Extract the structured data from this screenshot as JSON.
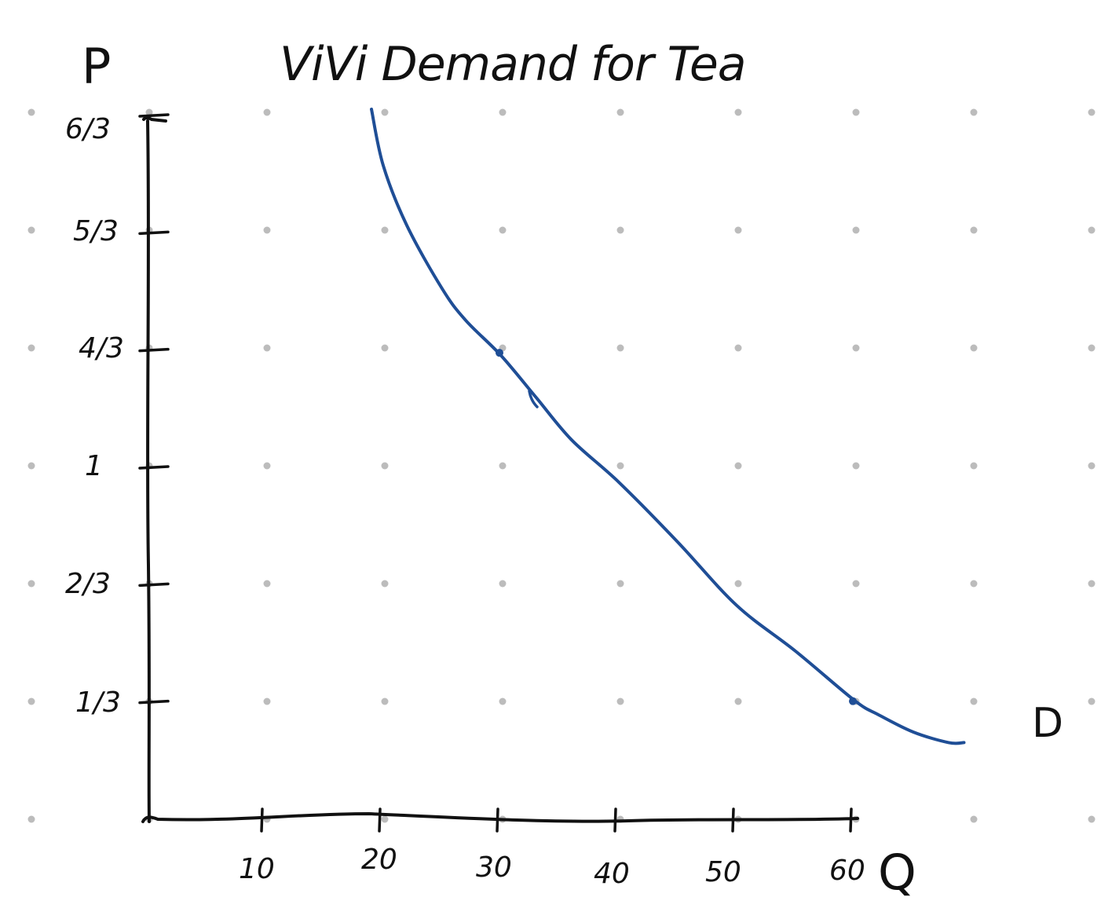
{
  "chart_data": {
    "type": "line",
    "title": "ViVi Demand for Tea",
    "xlabel": "Q",
    "ylabel": "P",
    "x_ticks": [
      "10",
      "20",
      "30",
      "40",
      "50",
      "60"
    ],
    "y_ticks": [
      "1/3",
      "2/3",
      "1",
      "4/3",
      "5/3",
      "6/3"
    ],
    "xlim": [
      0,
      72
    ],
    "ylim": [
      0,
      2
    ],
    "grid": "dot grid",
    "series": [
      {
        "name": "D",
        "color": "#1f4e96",
        "x": [
          19,
          20,
          22,
          25,
          27,
          30,
          33,
          36,
          40,
          45,
          50,
          55,
          60,
          62,
          65,
          68,
          69.3
        ],
        "y": [
          2.02,
          1.86,
          1.69,
          1.51,
          1.42,
          1.32,
          1.2,
          1.08,
          0.96,
          0.79,
          0.61,
          0.48,
          0.34,
          0.3,
          0.25,
          0.22,
          0.22
        ]
      }
    ],
    "marked_points": [
      {
        "x": 30,
        "y": 1.33
      },
      {
        "x": 60,
        "y": 0.34
      }
    ],
    "colors": {
      "ink": "#111111",
      "curve": "#1f4e96",
      "grid_dot": "#bcbcbc"
    }
  }
}
